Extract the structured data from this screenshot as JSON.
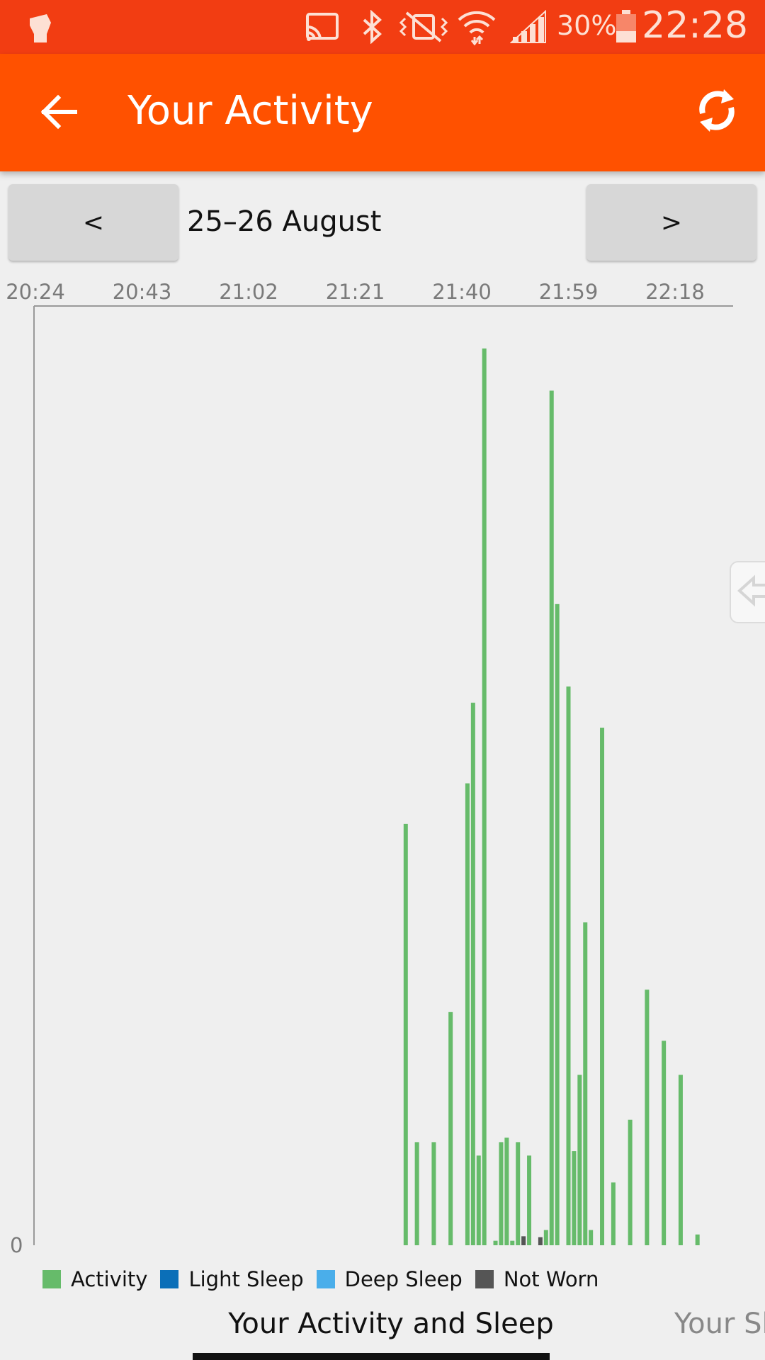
{
  "status_bar": {
    "battery_percent": "30%",
    "time": "22:28",
    "icons": [
      "app-fist-icon",
      "cast-icon",
      "bluetooth-icon",
      "vibrate-off-icon",
      "wifi-icon",
      "signal-icon",
      "battery-icon"
    ]
  },
  "app_bar": {
    "title": "Your Activity",
    "back_icon": "arrow-back-icon",
    "refresh_icon": "refresh-icon"
  },
  "date_nav": {
    "prev_label": "<",
    "next_label": ">",
    "date_range": "25–26 August"
  },
  "colors": {
    "activity": "#66bb6a",
    "light_sleep": "#0b6fb8",
    "deep_sleep": "#4aaeea",
    "not_worn": "#555555",
    "status_bar": "#f23d12",
    "app_bar": "#ff5100"
  },
  "chart_data": {
    "type": "bar",
    "x_tick_labels": [
      "20:24",
      "20:43",
      "21:02",
      "21:21",
      "21:40",
      "21:59",
      "22:18"
    ],
    "y_tick_labels": [
      "0"
    ],
    "x_axis": "minutes since 20:24",
    "ylim": [
      0,
      1
    ],
    "legend_position": "bottom-left",
    "series": [
      {
        "name": "Activity",
        "color": "#66bb6a",
        "x": [
          66,
          68,
          71,
          74,
          77,
          78,
          79,
          80,
          82,
          83,
          84,
          85,
          86,
          88,
          91,
          92,
          93,
          95,
          96,
          97,
          98,
          99,
          101,
          103,
          106,
          109,
          112,
          115,
          118
        ],
        "values": [
          0.47,
          0.115,
          0.115,
          0.26,
          0.515,
          0.605,
          0.1,
          1.0,
          0.005,
          0.115,
          0.12,
          0.005,
          0.115,
          0.1,
          0.017,
          0.953,
          0.715,
          0.623,
          0.105,
          0.19,
          0.36,
          0.017,
          0.577,
          0.07,
          0.14,
          0.285,
          0.228,
          0.19,
          0.012
        ]
      },
      {
        "name": "Light Sleep",
        "color": "#0b6fb8",
        "x": [],
        "values": []
      },
      {
        "name": "Deep Sleep",
        "color": "#4aaeea",
        "x": [],
        "values": []
      },
      {
        "name": "Not Worn",
        "color": "#555555",
        "x": [
          87,
          90
        ],
        "values": [
          0.01,
          0.009
        ]
      }
    ]
  },
  "legend": {
    "items": [
      {
        "label": "Activity",
        "color": "#66bb6a"
      },
      {
        "label": "Light Sleep",
        "color": "#0b6fb8"
      },
      {
        "label": "Deep Sleep",
        "color": "#4aaeea"
      },
      {
        "label": "Not Worn",
        "color": "#555555"
      }
    ]
  },
  "tabs": {
    "active": "Your Activity and Sleep",
    "next_partial": "Your Sl"
  }
}
